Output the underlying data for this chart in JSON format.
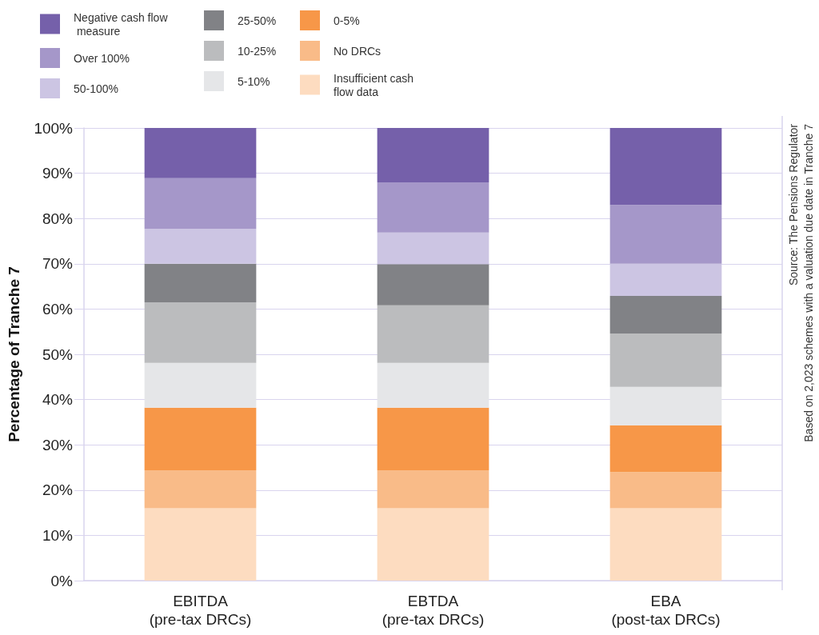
{
  "chart_data": {
    "type": "bar",
    "stacked": true,
    "ylabel": "Percentage of Tranche 7",
    "categories": [
      "EBITDA\n(pre-tax DRCs)",
      "EBTDA\n(pre-tax DRCs)",
      "EBA\n(post-tax DRCs)"
    ],
    "series": [
      {
        "name": "Insufficient cash flow data",
        "color": "#fddcc0",
        "values": [
          16,
          16,
          16
        ]
      },
      {
        "name": "No DRCs",
        "color": "#f9bb88",
        "values": [
          8.4,
          8.4,
          8.0
        ]
      },
      {
        "name": "0-5%",
        "color": "#f79748",
        "values": [
          13.8,
          13.8,
          10.3
        ]
      },
      {
        "name": "5-10%",
        "color": "#e5e6e8",
        "values": [
          9.9,
          9.9,
          8.5
        ]
      },
      {
        "name": "10-25%",
        "color": "#bbbcbe",
        "values": [
          13.4,
          12.7,
          11.8
        ]
      },
      {
        "name": "25-50%",
        "color": "#818286",
        "values": [
          8.5,
          9.1,
          8.3
        ]
      },
      {
        "name": "50-100%",
        "color": "#ccc5e3",
        "values": [
          7.7,
          7.0,
          7.1
        ]
      },
      {
        "name": "Over 100%",
        "color": "#a597c9",
        "values": [
          11.2,
          11.1,
          13.0
        ]
      },
      {
        "name": "Negative cash flow measure",
        "color": "#7560aa",
        "values": [
          11.1,
          12.0,
          17.0
        ]
      }
    ],
    "ylim": [
      0,
      100
    ],
    "yticks": [
      {
        "value": 0,
        "label": "0%"
      },
      {
        "value": 10,
        "label": "10%"
      },
      {
        "value": 20,
        "label": "20%"
      },
      {
        "value": 30,
        "label": "30%"
      },
      {
        "value": 40,
        "label": "40%"
      },
      {
        "value": 50,
        "label": "50%"
      },
      {
        "value": 60,
        "label": "60%"
      },
      {
        "value": 70,
        "label": "70%"
      },
      {
        "value": 80,
        "label": "80%"
      },
      {
        "value": 90,
        "label": "90%"
      },
      {
        "value": 100,
        "label": "100%"
      }
    ],
    "grid": "y",
    "legend": "top left",
    "annotations": [
      "Source: The Pensions Regulator",
      "Based on 2,023 schemes with a valuation due date in Tranche 7"
    ]
  }
}
